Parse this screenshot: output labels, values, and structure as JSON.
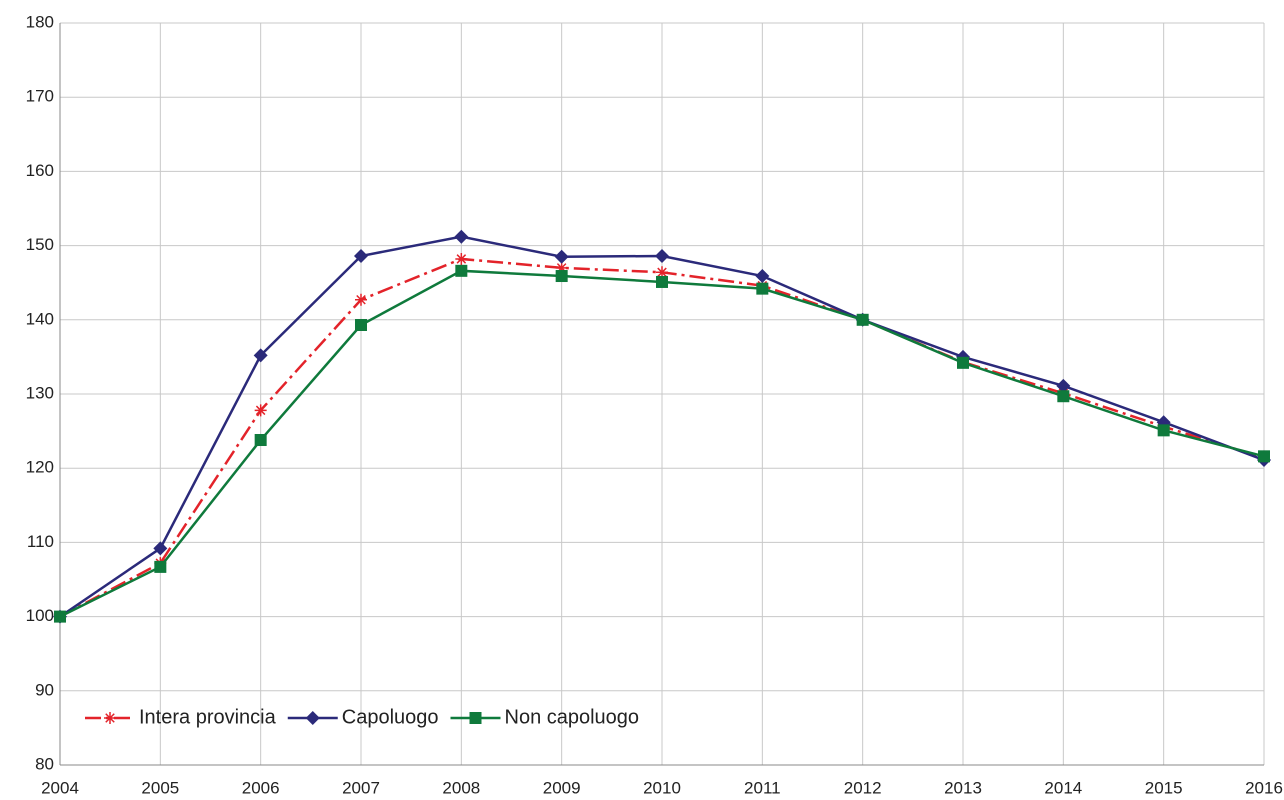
{
  "chart_data": {
    "type": "line",
    "x": [
      2004,
      2005,
      2006,
      2007,
      2008,
      2009,
      2010,
      2011,
      2012,
      2013,
      2014,
      2015,
      2016
    ],
    "series": [
      {
        "name": "Intera provincia",
        "color": "#e3232a",
        "marker": "star",
        "dash": "dashdot",
        "values": [
          100,
          107.2,
          127.8,
          142.7,
          148.2,
          147,
          146.4,
          144.6,
          140,
          134.3,
          130.1,
          125.6,
          121.4
        ]
      },
      {
        "name": "Capoluogo",
        "color": "#2b2a7a",
        "marker": "diamond",
        "dash": "solid",
        "values": [
          100,
          109.2,
          135.2,
          148.6,
          151.2,
          148.5,
          148.6,
          145.9,
          140,
          135,
          131.1,
          126.2,
          121.1
        ]
      },
      {
        "name": "Non capoluogo",
        "color": "#0f7a3c",
        "marker": "square",
        "dash": "solid",
        "values": [
          100,
          106.7,
          123.8,
          139.3,
          146.6,
          145.9,
          145.1,
          144.2,
          140,
          134.2,
          129.7,
          125.1,
          121.6
        ]
      }
    ],
    "xlim": [
      2004,
      2016
    ],
    "xticks": [
      2004,
      2005,
      2006,
      2007,
      2008,
      2009,
      2010,
      2011,
      2012,
      2013,
      2014,
      2015,
      2016
    ],
    "ylim": [
      80,
      180
    ],
    "yticks": [
      80,
      90,
      100,
      110,
      120,
      130,
      140,
      150,
      160,
      170,
      180
    ],
    "grid": true,
    "legend": "lower left"
  }
}
